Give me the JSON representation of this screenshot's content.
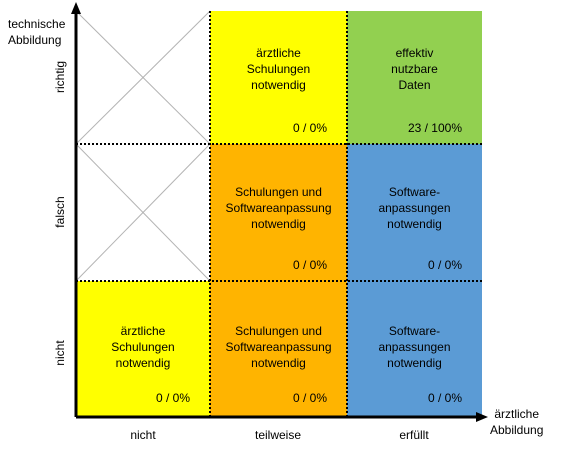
{
  "colors": {
    "yellow": "#ffff00",
    "orange": "#ffb400",
    "green": "#92d050",
    "blue": "#5b9bd5"
  },
  "axes": {
    "y_title": "technische\nAbbildung",
    "x_title": "ärztliche\nAbbildung",
    "rows": [
      "richtig",
      "falsch",
      "nicht"
    ],
    "cols": [
      "nicht",
      "teilweise",
      "erfüllt"
    ]
  },
  "cells": {
    "r0c1": {
      "text": "ärztliche\nSchulungen\nnotwendig",
      "count": "0 / 0%"
    },
    "r0c2": {
      "text": "effektiv\nnutzbare\nDaten",
      "count": "23 / 100%"
    },
    "r1c1": {
      "text": "Schulungen und\nSoftwareanpassung\nnotwendig",
      "count": "0 / 0%"
    },
    "r1c2": {
      "text": "Software-\nanpassungen\nnotwendig",
      "count": "0 / 0%"
    },
    "r2c0": {
      "text": "ärztliche\nSchulungen\nnotwendig",
      "count": "0 / 0%"
    },
    "r2c1": {
      "text": "Schulungen und\nSoftwareanpassung\nnotwendig",
      "count": "0 / 0%"
    },
    "r2c2": {
      "text": "Software-\nanpassungen\nnotwendig",
      "count": "0 / 0%"
    }
  }
}
